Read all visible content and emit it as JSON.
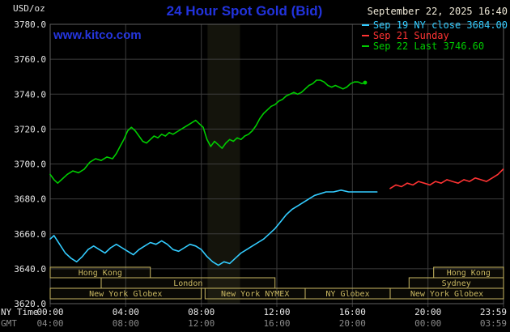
{
  "header": {
    "unit": "USD/oz",
    "title": "24 Hour Spot Gold (Bid)",
    "timestamp": "September 22, 2025 16:40"
  },
  "watermark": "www.kitco.com",
  "legend": [
    {
      "label": "Sep 19 NY close 3684.00",
      "color": "#33ccff"
    },
    {
      "label": "Sep 21 Sunday",
      "color": "#ff3333"
    },
    {
      "label": "Sep 22 Last 3746.60",
      "color": "#00cc00"
    }
  ],
  "axis": {
    "ny_time_label": "NY Time",
    "gmt_label": "GMT",
    "ny_ticks": [
      "00:00",
      "04:00",
      "08:00",
      "12:00",
      "16:00",
      "20:00",
      "23:59"
    ],
    "gmt_ticks": [
      "04:00",
      "08:00",
      "12:00",
      "16:00",
      "20:00",
      "00:00",
      "03:59"
    ]
  },
  "colors": {
    "background": "#000000",
    "title": "#2233dd",
    "link": "#2536df",
    "timestamp": "#f0ead8",
    "axis_text": "#e6e6e6",
    "gmt_text": "#8a8a8a",
    "grid": "#3c3c3c",
    "border": "#606060",
    "session": "#c9b862",
    "band": "#14140c"
  },
  "chart_data": {
    "type": "line",
    "title": "24 Hour Spot Gold (Bid)",
    "ylabel": "USD/oz",
    "ylim": [
      3620,
      3780
    ],
    "ytick_step": 20,
    "xlim_hours": [
      0,
      24
    ],
    "xtick_hours": [
      0,
      4,
      8,
      12,
      16,
      20,
      24
    ],
    "grid": true,
    "legend_position": "top-right",
    "highlight_band_hours": [
      8.33,
      10.05
    ],
    "series": [
      {
        "name": "Sep 19 NY close",
        "color": "#33ccff",
        "points": [
          [
            0,
            3657
          ],
          [
            0.2,
            3659
          ],
          [
            0.5,
            3654
          ],
          [
            0.8,
            3649
          ],
          [
            1.1,
            3646
          ],
          [
            1.4,
            3644
          ],
          [
            1.7,
            3647
          ],
          [
            2,
            3651
          ],
          [
            2.3,
            3653
          ],
          [
            2.6,
            3651
          ],
          [
            2.9,
            3649
          ],
          [
            3.2,
            3652
          ],
          [
            3.5,
            3654
          ],
          [
            3.8,
            3652
          ],
          [
            4.1,
            3650
          ],
          [
            4.4,
            3648
          ],
          [
            4.7,
            3651
          ],
          [
            5,
            3653
          ],
          [
            5.3,
            3655
          ],
          [
            5.6,
            3654
          ],
          [
            5.9,
            3656
          ],
          [
            6.2,
            3654
          ],
          [
            6.5,
            3651
          ],
          [
            6.8,
            3650
          ],
          [
            7.1,
            3652
          ],
          [
            7.4,
            3654
          ],
          [
            7.7,
            3653
          ],
          [
            8,
            3651
          ],
          [
            8.3,
            3647
          ],
          [
            8.6,
            3644
          ],
          [
            8.9,
            3642
          ],
          [
            9.2,
            3644
          ],
          [
            9.5,
            3643
          ],
          [
            9.8,
            3646
          ],
          [
            10.1,
            3649
          ],
          [
            10.4,
            3651
          ],
          [
            10.7,
            3653
          ],
          [
            11,
            3655
          ],
          [
            11.3,
            3657
          ],
          [
            11.6,
            3660
          ],
          [
            11.9,
            3663
          ],
          [
            12.2,
            3667
          ],
          [
            12.5,
            3671
          ],
          [
            12.8,
            3674
          ],
          [
            13.1,
            3676
          ],
          [
            13.4,
            3678
          ],
          [
            13.7,
            3680
          ],
          [
            14,
            3682
          ],
          [
            14.3,
            3683
          ],
          [
            14.6,
            3684
          ],
          [
            15,
            3684
          ],
          [
            15.4,
            3685
          ],
          [
            15.8,
            3684
          ],
          [
            16.2,
            3684
          ],
          [
            16.6,
            3684
          ],
          [
            17,
            3684
          ],
          [
            17.3,
            3684
          ]
        ]
      },
      {
        "name": "Sep 21 Sunday",
        "color": "#ff3333",
        "points": [
          [
            18,
            3686
          ],
          [
            18.3,
            3688
          ],
          [
            18.6,
            3687
          ],
          [
            18.9,
            3689
          ],
          [
            19.2,
            3688
          ],
          [
            19.5,
            3690
          ],
          [
            19.8,
            3689
          ],
          [
            20.1,
            3688
          ],
          [
            20.4,
            3690
          ],
          [
            20.7,
            3689
          ],
          [
            21,
            3691
          ],
          [
            21.3,
            3690
          ],
          [
            21.6,
            3689
          ],
          [
            21.9,
            3691
          ],
          [
            22.2,
            3690
          ],
          [
            22.5,
            3692
          ],
          [
            22.8,
            3691
          ],
          [
            23.1,
            3690
          ],
          [
            23.4,
            3692
          ],
          [
            23.7,
            3694
          ],
          [
            23.98,
            3697
          ]
        ]
      },
      {
        "name": "Sep 22 Last",
        "color": "#00cc00",
        "end_marker": true,
        "points": [
          [
            0,
            3694
          ],
          [
            0.2,
            3691
          ],
          [
            0.4,
            3689
          ],
          [
            0.6,
            3691
          ],
          [
            0.9,
            3694
          ],
          [
            1.2,
            3696
          ],
          [
            1.5,
            3695
          ],
          [
            1.8,
            3697
          ],
          [
            2.1,
            3701
          ],
          [
            2.4,
            3703
          ],
          [
            2.7,
            3702
          ],
          [
            3,
            3704
          ],
          [
            3.3,
            3703
          ],
          [
            3.5,
            3706
          ],
          [
            3.7,
            3710
          ],
          [
            3.9,
            3714
          ],
          [
            4.1,
            3719
          ],
          [
            4.3,
            3721
          ],
          [
            4.5,
            3719
          ],
          [
            4.7,
            3716
          ],
          [
            4.9,
            3713
          ],
          [
            5.1,
            3712
          ],
          [
            5.3,
            3714
          ],
          [
            5.5,
            3716
          ],
          [
            5.7,
            3715
          ],
          [
            5.9,
            3717
          ],
          [
            6.1,
            3716
          ],
          [
            6.3,
            3718
          ],
          [
            6.5,
            3717
          ],
          [
            6.8,
            3719
          ],
          [
            7.1,
            3721
          ],
          [
            7.4,
            3723
          ],
          [
            7.7,
            3725
          ],
          [
            7.9,
            3723
          ],
          [
            8.1,
            3721
          ],
          [
            8.3,
            3714
          ],
          [
            8.5,
            3710
          ],
          [
            8.7,
            3713
          ],
          [
            8.9,
            3711
          ],
          [
            9.1,
            3709
          ],
          [
            9.3,
            3712
          ],
          [
            9.5,
            3714
          ],
          [
            9.7,
            3713
          ],
          [
            9.9,
            3715
          ],
          [
            10.1,
            3714
          ],
          [
            10.3,
            3716
          ],
          [
            10.5,
            3717
          ],
          [
            10.7,
            3719
          ],
          [
            10.9,
            3722
          ],
          [
            11.1,
            3726
          ],
          [
            11.3,
            3729
          ],
          [
            11.5,
            3731
          ],
          [
            11.7,
            3733
          ],
          [
            11.9,
            3734
          ],
          [
            12.1,
            3736
          ],
          [
            12.3,
            3737
          ],
          [
            12.5,
            3739
          ],
          [
            12.7,
            3740
          ],
          [
            12.9,
            3741
          ],
          [
            13.1,
            3740
          ],
          [
            13.3,
            3741
          ],
          [
            13.5,
            3743
          ],
          [
            13.7,
            3745
          ],
          [
            13.9,
            3746
          ],
          [
            14.1,
            3748
          ],
          [
            14.3,
            3748
          ],
          [
            14.5,
            3747
          ],
          [
            14.7,
            3745
          ],
          [
            14.9,
            3744
          ],
          [
            15.1,
            3745
          ],
          [
            15.3,
            3744
          ],
          [
            15.5,
            3743
          ],
          [
            15.7,
            3744
          ],
          [
            15.9,
            3746
          ],
          [
            16.1,
            3747
          ],
          [
            16.3,
            3747
          ],
          [
            16.5,
            3746
          ],
          [
            16.67,
            3746.6
          ]
        ]
      }
    ],
    "sessions": [
      {
        "label": "Hong Kong",
        "row": 0,
        "start": 0,
        "end": 5.3
      },
      {
        "label": "Hong Kong",
        "row": 0,
        "start": 20.3,
        "end": 24
      },
      {
        "label": "London",
        "row": 1,
        "start": 2.7,
        "end": 11.9
      },
      {
        "label": "Sydney",
        "row": 1,
        "start": 19.0,
        "end": 24
      },
      {
        "label": "New York Globex",
        "row": 2,
        "start": 0,
        "end": 8.0
      },
      {
        "label": "New York NYMEX",
        "row": 2,
        "start": 8.2,
        "end": 13.5
      },
      {
        "label": "NY Globex",
        "row": 2,
        "start": 13.5,
        "end": 18.0
      },
      {
        "label": "New York Globex",
        "row": 2,
        "start": 18.0,
        "end": 24
      }
    ]
  }
}
